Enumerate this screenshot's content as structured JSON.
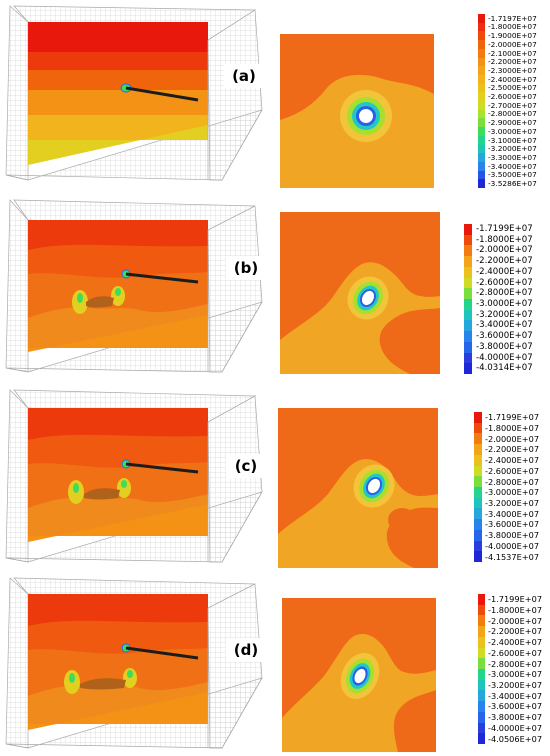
{
  "panels": [
    {
      "label": "(a)",
      "legend": [
        "-1.7197E+07",
        "-1.8000E+07",
        "-1.9000E+07",
        "-2.0000E+07",
        "-2.1000E+07",
        "-2.2000E+07",
        "-2.3000E+07",
        "-2.4000E+07",
        "-2.5000E+07",
        "-2.6000E+07",
        "-2.7000E+07",
        "-2.8000E+07",
        "-2.9000E+07",
        "-3.0000E+07",
        "-3.1000E+07",
        "-3.2000E+07",
        "-3.3000E+07",
        "-3.4000E+07",
        "-3.5000E+07",
        "-3.5286E+07"
      ]
    },
    {
      "label": "(b)",
      "legend": [
        "-1.7199E+07",
        "-1.8000E+07",
        "-2.0000E+07",
        "-2.2000E+07",
        "-2.4000E+07",
        "-2.6000E+07",
        "-2.8000E+07",
        "-3.0000E+07",
        "-3.2000E+07",
        "-3.4000E+07",
        "-3.6000E+07",
        "-3.8000E+07",
        "-4.0000E+07",
        "-4.0314E+07"
      ]
    },
    {
      "label": "(c)",
      "legend": [
        "-1.7199E+07",
        "-1.8000E+07",
        "-2.0000E+07",
        "-2.2000E+07",
        "-2.4000E+07",
        "-2.6000E+07",
        "-2.8000E+07",
        "-3.0000E+07",
        "-3.2000E+07",
        "-3.4000E+07",
        "-3.6000E+07",
        "-3.8000E+07",
        "-4.0000E+07",
        "-4.1537E+07"
      ]
    },
    {
      "label": "(d)",
      "legend": [
        "-1.7199E+07",
        "-1.8000E+07",
        "-2.0000E+07",
        "-2.2000E+07",
        "-2.4000E+07",
        "-2.6000E+07",
        "-2.8000E+07",
        "-3.0000E+07",
        "-3.2000E+07",
        "-3.4000E+07",
        "-3.6000E+07",
        "-3.8000E+07",
        "-4.0000E+07",
        "-4.0506E+07"
      ]
    }
  ],
  "colors": {
    "scale20": [
      "#e8190c",
      "#ec2f0c",
      "#ee4a0c",
      "#f0650c",
      "#f27c10",
      "#f39214",
      "#f4a418",
      "#f2b41c",
      "#ecc11e",
      "#e2cf20",
      "#cfdb24",
      "#a8e22e",
      "#7adf3c",
      "#3fdc5c",
      "#23d48c",
      "#1fc4bc",
      "#24a8dc",
      "#2884ec",
      "#2656e8",
      "#1e28d8"
    ],
    "scale14": [
      "#e8190c",
      "#ee4a0c",
      "#f27c10",
      "#f4a418",
      "#ecc11e",
      "#cfdb24",
      "#7adf3c",
      "#23d48c",
      "#1fc4bc",
      "#24a8dc",
      "#2884ec",
      "#2666ea",
      "#2a3ee0",
      "#1e28d8"
    ],
    "background": "#ef6a18",
    "zone_mid": "#f0a624",
    "zone_low": "#f2c43a",
    "ring_green": "#a6df2e",
    "ring_cyan": "#22c8c8",
    "ring_blue": "#2a60e8",
    "cavity": "#ffffff",
    "mesh_line": "#bdbdbd",
    "anchor": "#1c1c1c"
  }
}
